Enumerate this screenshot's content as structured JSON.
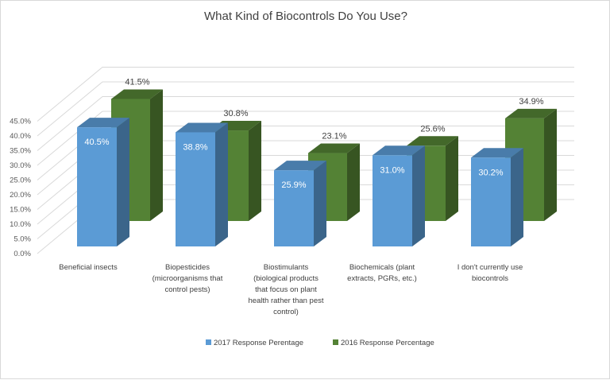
{
  "chart_data": {
    "type": "bar",
    "title": "What Kind of Biocontrols Do You Use?",
    "categories": [
      [
        "Beneficial insects"
      ],
      [
        "Biopesticides",
        "(microorganisms that",
        "control pests)"
      ],
      [
        "Biostimulants",
        "(biological products",
        "that focus on plant",
        "health rather than pest",
        "control)"
      ],
      [
        "Biochemicals (plant",
        "extracts, PGRs, etc.)"
      ],
      [
        "I don't currently use",
        "biocontrols"
      ]
    ],
    "series": [
      {
        "name": "2017 Response Perentage",
        "color": "#5B9BD5",
        "values": [
          40.5,
          38.8,
          25.9,
          31.0,
          30.2
        ],
        "labels": [
          "40.5%",
          "38.8%",
          "25.9%",
          "31.0%",
          "30.2%"
        ]
      },
      {
        "name": "2016 Response Percentage",
        "color": "#548235",
        "values": [
          41.5,
          30.8,
          23.1,
          25.6,
          34.9
        ],
        "labels": [
          "41.5%",
          "30.8%",
          "23.1%",
          "25.6%",
          "34.9%"
        ]
      }
    ],
    "yticks": [
      "0.0%",
      "5.0%",
      "10.0%",
      "15.0%",
      "20.0%",
      "25.0%",
      "30.0%",
      "35.0%",
      "40.0%",
      "45.0%"
    ],
    "ylim": [
      0,
      45
    ],
    "grid": true,
    "three_d": true,
    "legend": "bottom"
  }
}
